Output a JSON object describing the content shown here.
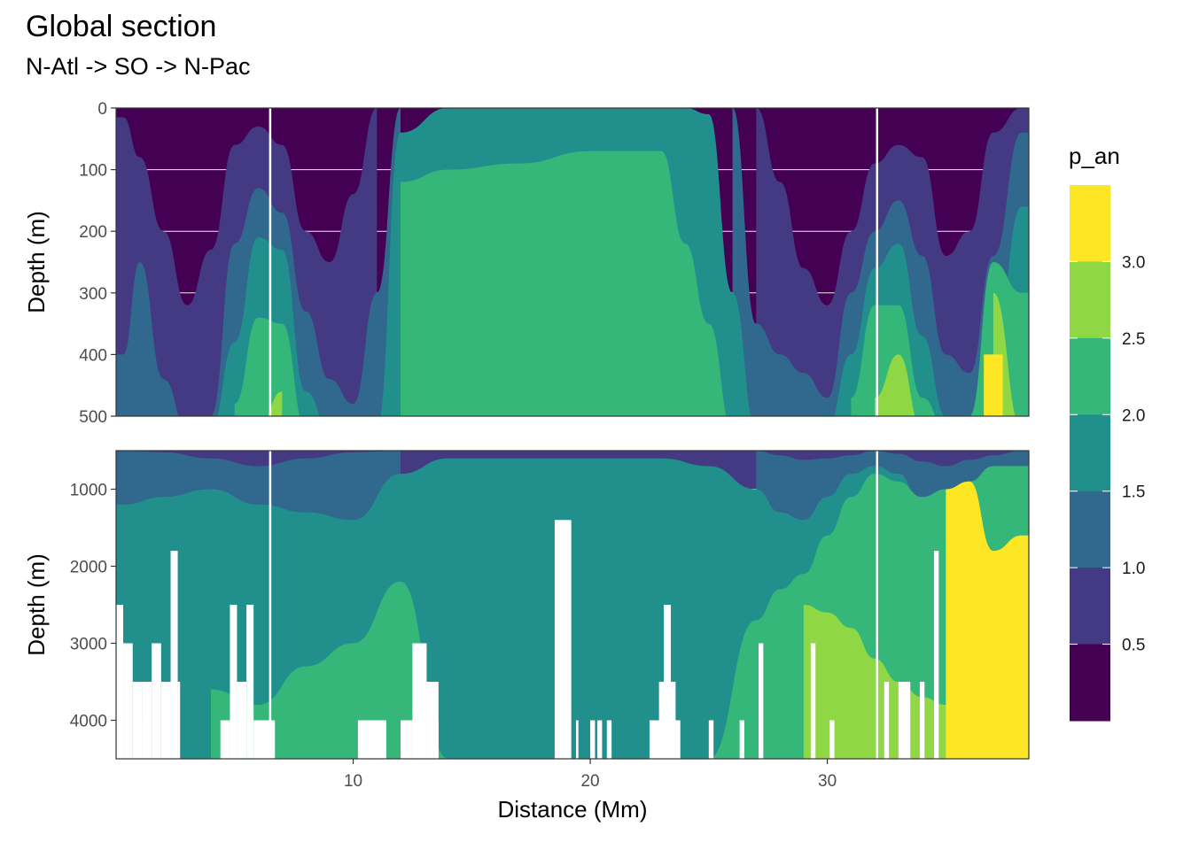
{
  "chart_data": {
    "type": "heatmap",
    "title": "Global section",
    "subtitle": "N-Atl -> SO -> N-Pac",
    "xlabel": "Distance (Mm)",
    "ylabel": "Depth (m)",
    "xlim": [
      0,
      38.5
    ],
    "x_ticks": [
      10,
      20,
      30
    ],
    "vertical_markers_x": [
      6.5,
      32.1
    ],
    "panels": [
      {
        "name": "upper",
        "ylim": [
          0,
          500
        ],
        "y_ticks": [
          0,
          100,
          200,
          300,
          400,
          500
        ]
      },
      {
        "name": "lower",
        "ylim": [
          500,
          4500
        ],
        "y_ticks": [
          1000,
          2000,
          3000,
          4000
        ]
      }
    ],
    "legend": {
      "title": "p_an",
      "position": "right",
      "breaks": [
        0.5,
        1.0,
        1.5,
        2.0,
        2.5,
        3.0
      ],
      "break_labels": [
        "0.5",
        "1.0",
        "1.5",
        "2.0",
        "2.5",
        "3.0"
      ],
      "bins": [
        {
          "min": 0.0,
          "max": 0.5,
          "color": "#440154"
        },
        {
          "min": 0.5,
          "max": 1.0,
          "color": "#443a83"
        },
        {
          "min": 1.0,
          "max": 1.5,
          "color": "#31688e"
        },
        {
          "min": 1.5,
          "max": 2.0,
          "color": "#21908d"
        },
        {
          "min": 2.0,
          "max": 2.5,
          "color": "#35b779"
        },
        {
          "min": 2.5,
          "max": 3.0,
          "color": "#8fd744"
        },
        {
          "min": 3.0,
          "max": 3.5,
          "color": "#fde725"
        }
      ]
    },
    "upper_section": {
      "x": [
        0.3,
        1,
        2,
        3,
        4,
        5,
        6,
        7,
        8,
        9,
        10,
        11,
        12,
        14,
        17,
        20,
        23,
        24,
        25,
        26,
        27,
        28,
        29,
        30,
        31,
        32,
        33,
        34,
        35,
        36,
        37,
        38.2
      ],
      "class_depth_m": {
        "0.5": [
          15,
          80,
          200,
          320,
          230,
          60,
          30,
          60,
          200,
          250,
          140,
          0,
          null,
          null,
          null,
          null,
          null,
          null,
          null,
          null,
          0,
          120,
          260,
          320,
          200,
          90,
          60,
          80,
          240,
          200,
          40,
          0
        ],
        "1.0": [
          400,
          250,
          440,
          520,
          500,
          220,
          130,
          170,
          330,
          440,
          480,
          300,
          0,
          null,
          null,
          null,
          null,
          null,
          null,
          0,
          350,
          400,
          430,
          470,
          300,
          200,
          150,
          240,
          400,
          430,
          240,
          40
        ],
        "1.5": [
          520,
          520,
          520,
          520,
          520,
          380,
          210,
          230,
          460,
          520,
          520,
          520,
          40,
          0,
          0,
          0,
          0,
          0,
          10,
          300,
          520,
          520,
          520,
          520,
          400,
          260,
          220,
          370,
          500,
          520,
          400,
          160
        ],
        "2.0": [
          null,
          null,
          null,
          null,
          null,
          480,
          340,
          350,
          520,
          null,
          null,
          null,
          120,
          100,
          90,
          70,
          70,
          220,
          350,
          520,
          null,
          null,
          null,
          null,
          470,
          320,
          320,
          470,
          520,
          500,
          250,
          300
        ],
        "2.5": [
          null,
          null,
          null,
          null,
          null,
          null,
          520,
          460,
          null,
          null,
          null,
          null,
          null,
          null,
          null,
          null,
          null,
          null,
          null,
          null,
          null,
          null,
          null,
          null,
          null,
          470,
          400,
          520,
          null,
          null,
          300,
          520
        ],
        "3.0": [
          null,
          null,
          null,
          null,
          null,
          null,
          null,
          null,
          null,
          null,
          null,
          null,
          null,
          null,
          null,
          null,
          null,
          null,
          null,
          null,
          null,
          null,
          null,
          null,
          null,
          null,
          null,
          null,
          null,
          null,
          400,
          null
        ]
      }
    },
    "lower_section": {
      "x": [
        0.3,
        2,
        4,
        6,
        8,
        10,
        12,
        14,
        17,
        20,
        23,
        25,
        27,
        28,
        29,
        30,
        31,
        32,
        33,
        34,
        35,
        36,
        37,
        38.2
      ],
      "class_depth_m": {
        "1.0": [
          500,
          520,
          600,
          700,
          600,
          520,
          500,
          null,
          null,
          null,
          null,
          null,
          500,
          560,
          620,
          600,
          560,
          500,
          540,
          640,
          700,
          620,
          560,
          500
        ],
        "1.5": [
          1200,
          1100,
          1000,
          1200,
          1300,
          1400,
          800,
          600,
          600,
          600,
          600,
          700,
          1000,
          1300,
          1400,
          1100,
          800,
          700,
          800,
          1200,
          1400,
          1200,
          900,
          700
        ],
        "2.0": [
          null,
          null,
          3600,
          3800,
          3300,
          3000,
          2200,
          4500,
          4500,
          4500,
          4500,
          4500,
          2700,
          2300,
          2100,
          1600,
          1100,
          800,
          900,
          1100,
          1000,
          900,
          700,
          700
        ],
        "2.5": [
          null,
          null,
          null,
          null,
          null,
          null,
          null,
          null,
          null,
          null,
          null,
          null,
          null,
          null,
          2500,
          2600,
          2800,
          3200,
          3500,
          3700,
          3800,
          4500,
          4500,
          4500
        ],
        "3.0": [
          null,
          null,
          null,
          null,
          null,
          null,
          null,
          null,
          null,
          null,
          null,
          null,
          null,
          null,
          null,
          null,
          null,
          null,
          null,
          null,
          1000,
          900,
          1800,
          1600
        ]
      },
      "seafloor_notches": [
        {
          "x": [
            0,
            0.3
          ],
          "depth": 2500
        },
        {
          "x": [
            0.3,
            0.7
          ],
          "depth": 3000
        },
        {
          "x": [
            0.7,
            1.1
          ],
          "depth": 3500
        },
        {
          "x": [
            1.1,
            1.5
          ],
          "depth": 3500
        },
        {
          "x": [
            1.1,
            1.2
          ],
          "depth": 4000
        },
        {
          "x": [
            1.5,
            1.9
          ],
          "depth": 3000
        },
        {
          "x": [
            1.9,
            2.3
          ],
          "depth": 3500
        },
        {
          "x": [
            2.3,
            2.6
          ],
          "depth": 1800
        },
        {
          "x": [
            2.6,
            2.7
          ],
          "depth": 3500
        },
        {
          "x": [
            4.4,
            4.8
          ],
          "depth": 4000
        },
        {
          "x": [
            4.8,
            5.1
          ],
          "depth": 2500
        },
        {
          "x": [
            5.1,
            5.5
          ],
          "depth": 3500
        },
        {
          "x": [
            5.5,
            5.8
          ],
          "depth": 2500
        },
        {
          "x": [
            5.8,
            6.7
          ],
          "depth": 4000
        },
        {
          "x": [
            10.2,
            11.4
          ],
          "depth": 4000
        },
        {
          "x": [
            12.0,
            12.5
          ],
          "depth": 4000
        },
        {
          "x": [
            12.5,
            13.1
          ],
          "depth": 3000
        },
        {
          "x": [
            13.1,
            13.6
          ],
          "depth": 3500
        },
        {
          "x": [
            13.3,
            13.6
          ],
          "depth": 4000
        },
        {
          "x": [
            18.5,
            19.2
          ],
          "depth": 1400
        },
        {
          "x": [
            18.6,
            18.9
          ],
          "depth": 2500
        },
        {
          "x": [
            19.4,
            19.5
          ],
          "depth": 4000
        },
        {
          "x": [
            20.0,
            20.2
          ],
          "depth": 4000
        },
        {
          "x": [
            20.3,
            20.5
          ],
          "depth": 4000
        },
        {
          "x": [
            20.7,
            20.9
          ],
          "depth": 4000
        },
        {
          "x": [
            22.5,
            23.8
          ],
          "depth": 4000
        },
        {
          "x": [
            22.9,
            23.6
          ],
          "depth": 3500
        },
        {
          "x": [
            23.1,
            23.4
          ],
          "depth": 2500
        },
        {
          "x": [
            25.0,
            25.2
          ],
          "depth": 4000
        },
        {
          "x": [
            26.3,
            26.5
          ],
          "depth": 4000
        },
        {
          "x": [
            27.1,
            27.3
          ],
          "depth": 3000
        },
        {
          "x": [
            29.3,
            29.5
          ],
          "depth": 3000
        },
        {
          "x": [
            30.1,
            30.3
          ],
          "depth": 4000
        },
        {
          "x": [
            32.4,
            32.6
          ],
          "depth": 3500
        },
        {
          "x": [
            33.0,
            33.5
          ],
          "depth": 3500
        },
        {
          "x": [
            33.9,
            34.1
          ],
          "depth": 3500
        },
        {
          "x": [
            34.5,
            34.7
          ],
          "depth": 1800
        }
      ]
    }
  }
}
